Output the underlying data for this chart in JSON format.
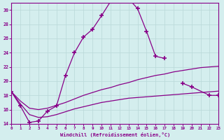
{
  "xlabel": "Windchill (Refroidissement éolien,°C)",
  "bg_color": "#d4eeee",
  "grid_color": "#b8d8d8",
  "line_color": "#880088",
  "xlim": [
    0,
    23
  ],
  "ylim": [
    14,
    31
  ],
  "yticks": [
    14,
    16,
    18,
    20,
    22,
    24,
    26,
    28,
    30
  ],
  "xticks": [
    0,
    1,
    2,
    3,
    4,
    5,
    6,
    7,
    8,
    9,
    10,
    11,
    12,
    13,
    14,
    15,
    16,
    17,
    18,
    19,
    20,
    21,
    22,
    23
  ],
  "series1_x": [
    0,
    1,
    2,
    3,
    4,
    5,
    6,
    7,
    8,
    9,
    10,
    11,
    12,
    13,
    14,
    15,
    16,
    17
  ],
  "series1_y": [
    18.5,
    16.5,
    14.2,
    14.4,
    15.8,
    16.5,
    20.8,
    24.0,
    26.2,
    27.3,
    29.2,
    31.2,
    31.6,
    31.6,
    30.2,
    27.0,
    23.5,
    23.2
  ],
  "series2_x": [
    19,
    20,
    22,
    23
  ],
  "series2_y": [
    19.7,
    19.2,
    18.0,
    18.0
  ],
  "series3_x": [
    0,
    1,
    2,
    3,
    4,
    5,
    6,
    7,
    8,
    9,
    10,
    11,
    12,
    13,
    14,
    15,
    16,
    17,
    18,
    19,
    20,
    21,
    22,
    23
  ],
  "series3_y": [
    18.5,
    17.2,
    16.2,
    16.0,
    16.2,
    16.6,
    17.0,
    17.5,
    18.0,
    18.4,
    18.8,
    19.1,
    19.5,
    19.8,
    20.2,
    20.5,
    20.8,
    21.0,
    21.3,
    21.5,
    21.7,
    21.9,
    22.0,
    22.1
  ],
  "series4_x": [
    0,
    1,
    2,
    3,
    4,
    5,
    6,
    7,
    8,
    9,
    10,
    11,
    12,
    13,
    14,
    15,
    16,
    17,
    18,
    19,
    20,
    21,
    22,
    23
  ],
  "series4_y": [
    18.5,
    16.8,
    15.3,
    14.9,
    15.0,
    15.3,
    15.7,
    16.1,
    16.4,
    16.7,
    17.0,
    17.2,
    17.4,
    17.6,
    17.7,
    17.8,
    17.9,
    18.0,
    18.1,
    18.2,
    18.3,
    18.4,
    18.5,
    18.6
  ]
}
